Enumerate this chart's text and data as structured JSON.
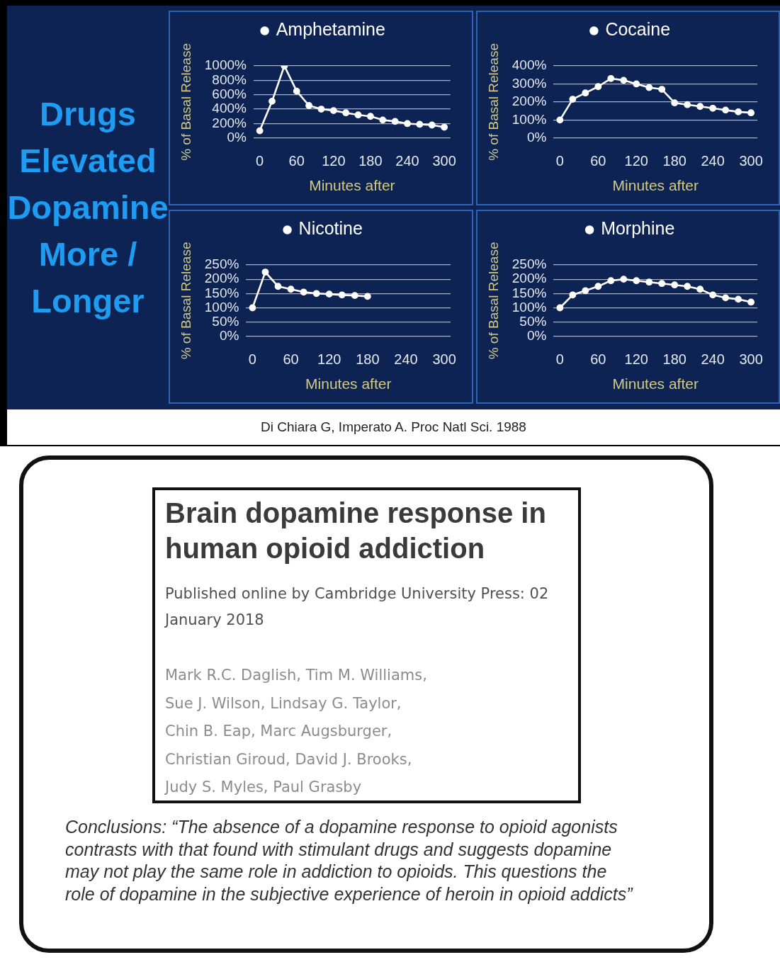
{
  "chart_data": [
    {
      "type": "other",
      "title": "Drugs Elevated Dopamine More / Longer",
      "annotations": [
        "Di Chiara G, Imperato A. Proc Natl Sci. 1988"
      ]
    },
    {
      "type": "line",
      "categories": [
        "0",
        null,
        null,
        "60",
        null,
        null,
        "120",
        null,
        null,
        "180",
        null,
        null,
        "240",
        null,
        null,
        "300"
      ],
      "series": [
        {
          "name": "Amphetamine",
          "color": "#ffffff",
          "values": [
            100,
            510,
            1000,
            650,
            450,
            400,
            380,
            350,
            320,
            300,
            250,
            230,
            200,
            190,
            180,
            150
          ]
        }
      ],
      "xlabel": "Minutes after",
      "ylabel": "% of Basal Release",
      "ylim": [
        0,
        1000
      ],
      "yticks": [
        {
          "value": 0,
          "label": "0%"
        },
        {
          "value": 200,
          "label": "200%"
        },
        {
          "value": 400,
          "label": "400%"
        },
        {
          "value": 600,
          "label": "600%"
        },
        {
          "value": 800,
          "label": "800%"
        },
        {
          "value": 1000,
          "label": "1000%"
        }
      ],
      "grid": "y",
      "legend": "top",
      "marker": "circle"
    },
    {
      "type": "line",
      "categories": [
        "0",
        null,
        null,
        "60",
        null,
        null,
        "120",
        null,
        null,
        "180",
        null,
        null,
        "240",
        null,
        null,
        "300"
      ],
      "series": [
        {
          "name": "Cocaine",
          "color": "#ffffff",
          "values": [
            100,
            215,
            250,
            285,
            330,
            320,
            300,
            280,
            270,
            195,
            185,
            175,
            165,
            155,
            145,
            140
          ]
        }
      ],
      "xlabel": "Minutes after",
      "ylabel": "% of Basal Release",
      "ylim": [
        0,
        400
      ],
      "yticks": [
        {
          "value": 0,
          "label": "0%"
        },
        {
          "value": 100,
          "label": "100%"
        },
        {
          "value": 200,
          "label": "200%"
        },
        {
          "value": 300,
          "label": "300%"
        },
        {
          "value": 400,
          "label": "400%"
        }
      ],
      "grid": "y",
      "legend": "top",
      "marker": "circle"
    },
    {
      "type": "line",
      "categories": [
        "0",
        null,
        null,
        "60",
        null,
        null,
        "120",
        null,
        null,
        "180",
        null,
        null,
        "240",
        null,
        null,
        "300"
      ],
      "series": [
        {
          "name": "Nicotine",
          "color": "#ffffff",
          "values": [
            100,
            225,
            175,
            165,
            155,
            150,
            148,
            145,
            143,
            140,
            null,
            null,
            null,
            null,
            null,
            null
          ]
        }
      ],
      "xlabel": "Minutes after",
      "ylabel": "% of Basal Release",
      "ylim": [
        0,
        250
      ],
      "yticks": [
        {
          "value": 0,
          "label": "0%"
        },
        {
          "value": 50,
          "label": "50%"
        },
        {
          "value": 100,
          "label": "100%"
        },
        {
          "value": 150,
          "label": "150%"
        },
        {
          "value": 200,
          "label": "200%"
        },
        {
          "value": 250,
          "label": "250%"
        }
      ],
      "grid": "y",
      "legend": "top",
      "marker": "circle"
    },
    {
      "type": "line",
      "categories": [
        "0",
        null,
        null,
        "60",
        null,
        null,
        "120",
        null,
        null,
        "180",
        null,
        null,
        "240",
        null,
        null,
        "300"
      ],
      "series": [
        {
          "name": "Morphine",
          "color": "#ffffff",
          "values": [
            100,
            145,
            160,
            175,
            195,
            200,
            195,
            190,
            185,
            180,
            175,
            165,
            145,
            135,
            130,
            120
          ]
        }
      ],
      "xlabel": "Minutes after",
      "ylabel": "% of Basal Release",
      "ylim": [
        0,
        250
      ],
      "yticks": [
        {
          "value": 0,
          "label": "0%"
        },
        {
          "value": 50,
          "label": "50%"
        },
        {
          "value": 100,
          "label": "100%"
        },
        {
          "value": 150,
          "label": "150%"
        },
        {
          "value": 200,
          "label": "200%"
        },
        {
          "value": 250,
          "label": "250%"
        }
      ],
      "grid": "y",
      "legend": "top",
      "marker": "circle"
    },
    {
      "type": "other",
      "title": "Brain dopamine response in human opioid addiction",
      "subtitle": "Published online by Cambridge University Press: 02 January 2018",
      "annotations": [
        "Mark R.C. Daglish, Tim M. Williams,",
        "Sue J. Wilson, Lindsay G. Taylor,",
        "Chin B. Eap, Marc Augsburger,",
        "Christian Giroud, David J. Brooks,",
        "Judy S. Myles, Paul Grasby",
        "Conclusions: “The absence of a dopamine response to opioid agonists contrasts with that found with stimulant drugs and suggests dopamine may not play the same role in addiction to opioids. This questions the role of dopamine in the subjective experience of heroin in opioid addicts”"
      ]
    }
  ]
}
